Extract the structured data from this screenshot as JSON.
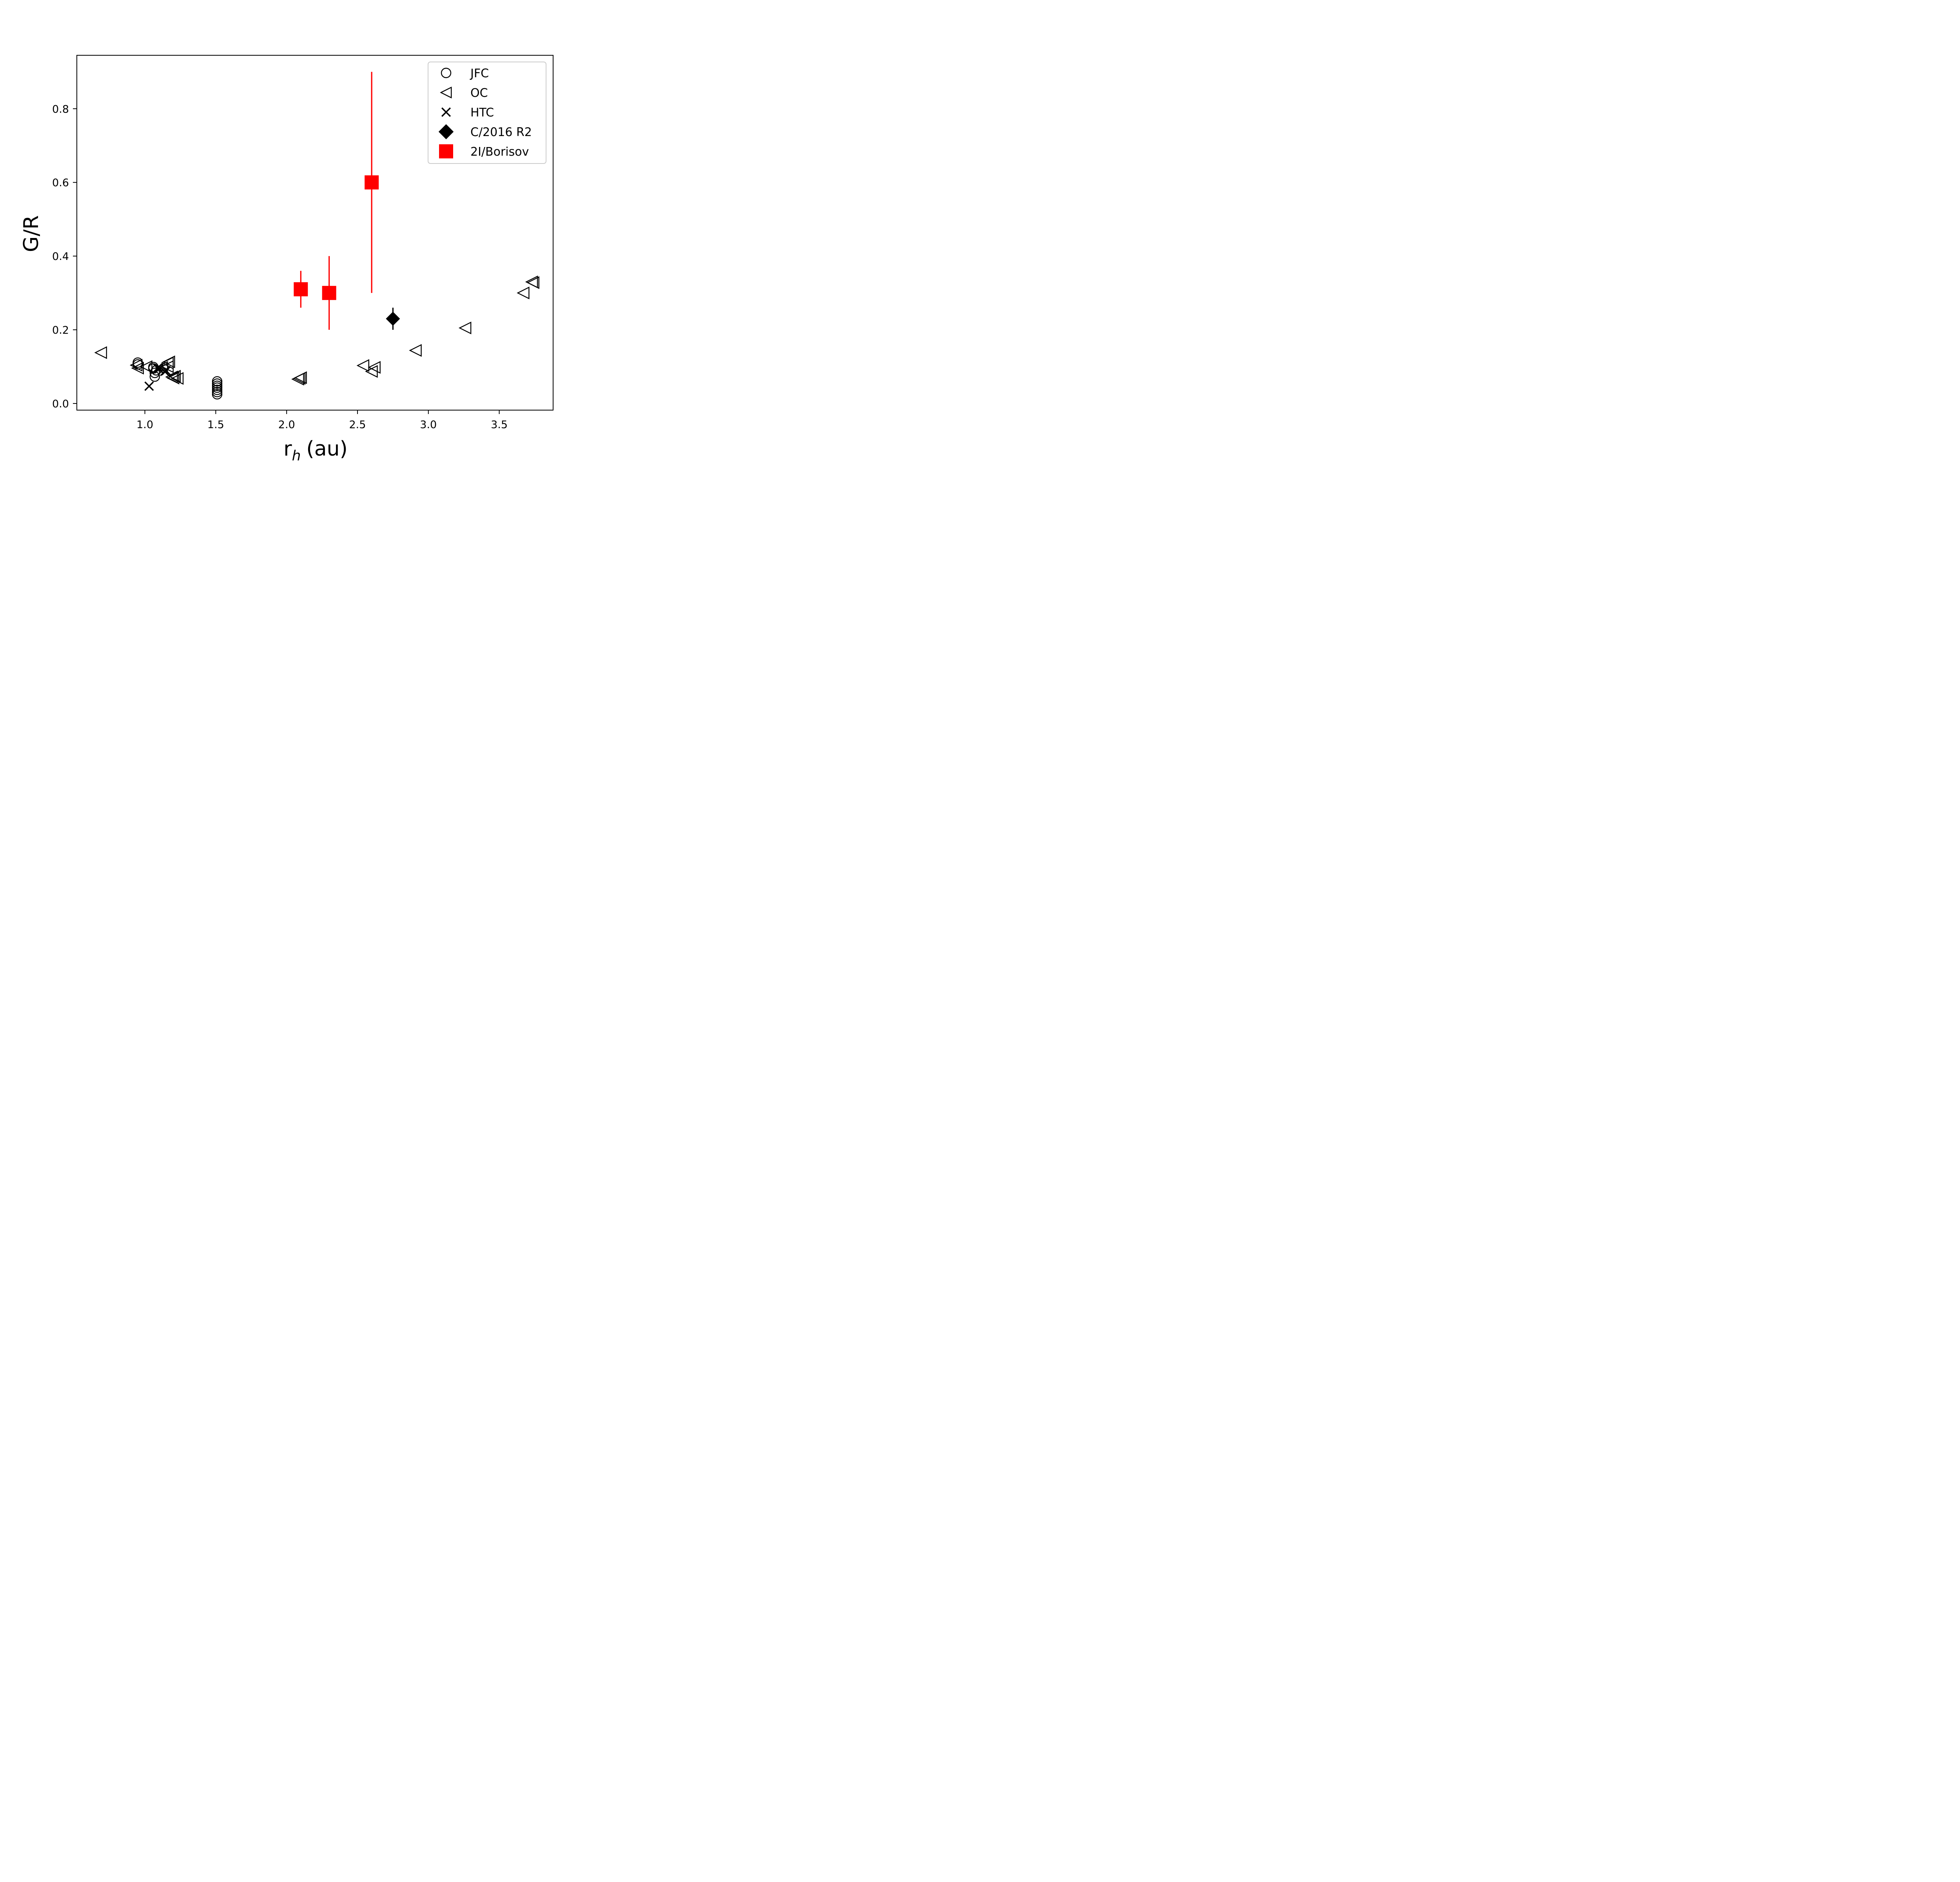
{
  "chart_data": {
    "type": "scatter",
    "xlabel": "r",
    "xlabel_sub": "h",
    "xlabel_unit": "(au)",
    "ylabel": "G/R",
    "xlim": [
      0.52,
      3.88
    ],
    "ylim": [
      -0.018,
      0.945
    ],
    "xticks": [
      1.0,
      1.5,
      2.0,
      2.5,
      3.0,
      3.5
    ],
    "xtick_labels": [
      "1.0",
      "1.5",
      "2.0",
      "2.5",
      "3.0",
      "3.5"
    ],
    "yticks": [
      0.0,
      0.2,
      0.4,
      0.6,
      0.8
    ],
    "ytick_labels": [
      "0.0",
      "0.2",
      "0.4",
      "0.6",
      "0.8"
    ],
    "grid": false,
    "legend_position": "top-right",
    "series": [
      {
        "name": "JFC",
        "marker": "circle-open",
        "color": "#000000",
        "points": [
          [
            0.95,
            0.111
          ],
          [
            0.95,
            0.106
          ],
          [
            1.06,
            0.099
          ],
          [
            1.06,
            0.095
          ],
          [
            1.07,
            0.083
          ],
          [
            1.07,
            0.073
          ],
          [
            1.08,
            0.09
          ],
          [
            1.51,
            0.06
          ],
          [
            1.51,
            0.054
          ],
          [
            1.51,
            0.048
          ],
          [
            1.51,
            0.043
          ],
          [
            1.51,
            0.037
          ],
          [
            1.51,
            0.031
          ],
          [
            1.51,
            0.025
          ]
        ]
      },
      {
        "name": "OC",
        "marker": "triangle-left-open",
        "color": "#000000",
        "points": [
          [
            0.69,
            0.138
          ],
          [
            0.94,
            0.104
          ],
          [
            0.95,
            0.096
          ],
          [
            1.01,
            0.1
          ],
          [
            1.12,
            0.098
          ],
          [
            1.16,
            0.11
          ],
          [
            1.17,
            0.113
          ],
          [
            1.16,
            0.1
          ],
          [
            1.19,
            0.072
          ],
          [
            1.21,
            0.074
          ],
          [
            1.23,
            0.068
          ],
          [
            1.2,
            0.069
          ],
          [
            2.08,
            0.066
          ],
          [
            2.09,
            0.068
          ],
          [
            2.1,
            0.07
          ],
          [
            2.54,
            0.103
          ],
          [
            2.6,
            0.087
          ],
          [
            2.62,
            0.098
          ],
          [
            2.91,
            0.144
          ],
          [
            3.26,
            0.205
          ],
          [
            3.67,
            0.3
          ],
          [
            3.73,
            0.33
          ],
          [
            3.74,
            0.328
          ]
        ]
      },
      {
        "name": "HTC",
        "marker": "x",
        "color": "#000000",
        "points": [
          [
            1.03,
            0.047
          ],
          [
            1.09,
            0.096
          ],
          [
            1.1,
            0.094
          ],
          [
            1.14,
            0.087
          ],
          [
            1.15,
            0.089
          ]
        ]
      },
      {
        "name": "C/2016 R2",
        "marker": "diamond-filled",
        "color": "#000000",
        "points": [
          [
            2.75,
            0.23
          ]
        ],
        "yerr": [
          0.03
        ]
      },
      {
        "name": "2I/Borisov",
        "marker": "square-filled",
        "color": "#ff0000",
        "points": [
          [
            2.1,
            0.31
          ],
          [
            2.3,
            0.3
          ],
          [
            2.6,
            0.6
          ]
        ],
        "yerr": [
          0.05,
          0.1,
          0.3
        ]
      }
    ]
  }
}
